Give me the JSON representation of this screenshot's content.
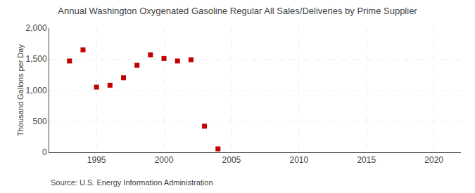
{
  "chart_data": {
    "type": "scatter",
    "title": "Annual Washington Oxygenated Gasoline Regular All Sales/Deliveries by Prime Supplier",
    "ylabel": "Thousand Gallons per Day",
    "annotations": [
      "Source: U.S. Energy Information Administration"
    ],
    "x": [
      1993,
      1994,
      1995,
      1996,
      1997,
      1998,
      1999,
      2000,
      2001,
      2002,
      2003,
      2004,
      2005
    ],
    "values": [
      1470,
      1650,
      1050,
      1080,
      1200,
      1400,
      1570,
      1510,
      1470,
      1490,
      420,
      55,
      null
    ],
    "color": "#c00000",
    "marker": "square",
    "xlim": [
      1991.5,
      2022
    ],
    "ylim": [
      0,
      2000
    ],
    "xticks": [
      1995,
      2000,
      2005,
      2010,
      2015,
      2020
    ],
    "yticks": [
      0,
      500,
      {
        "value": 1000,
        "label": "1,000"
      },
      {
        "value": 1500,
        "label": "1,500"
      },
      {
        "value": 2000,
        "label": "2,000"
      }
    ],
    "grid": true
  }
}
